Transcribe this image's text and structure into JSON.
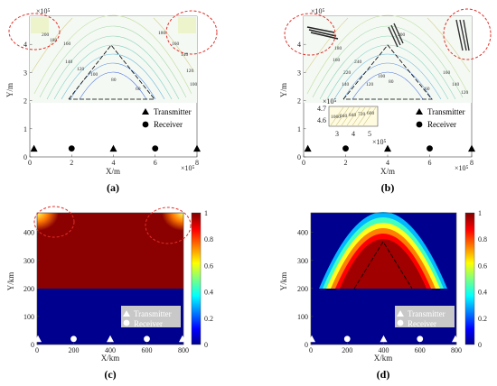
{
  "panels": [
    {
      "id": "a",
      "caption": "(a)",
      "type": "contour",
      "xlabel": "X/m",
      "ylabel": "Y/m",
      "x_exponent_label": "×10⁵",
      "y_exponent_label": "×10⁵",
      "xlim": [
        0,
        8
      ],
      "ylim": [
        0,
        5
      ],
      "xticks": [
        "0",
        "2",
        "4",
        "6",
        "8"
      ],
      "yticks": [
        "0",
        "1",
        "2",
        "3",
        "4"
      ],
      "contour_labels": [
        "200",
        "180",
        "160",
        "140",
        "120",
        "100",
        "80",
        "60",
        "180",
        "160",
        "140",
        "120",
        "100"
      ],
      "legend": [
        {
          "label": "Transmitter",
          "marker": "triangle"
        },
        {
          "label": "Receiver",
          "marker": "circle"
        }
      ]
    },
    {
      "id": "b",
      "caption": "(b)",
      "type": "contour",
      "xlabel": "X/m",
      "ylabel": "Y/m",
      "x_exponent_label": "×10⁵",
      "y_exponent_label": "×10⁵",
      "xlim": [
        0,
        8
      ],
      "ylim": [
        0,
        5
      ],
      "xticks": [
        "0",
        "2",
        "4",
        "6",
        "8"
      ],
      "yticks": [
        "0",
        "1",
        "2",
        "3",
        "4"
      ],
      "contour_labels": [
        "180",
        "160",
        "240",
        "220",
        "140",
        "120",
        "100",
        "80",
        "60",
        "160",
        "140",
        "120",
        "200"
      ],
      "inset": {
        "y_exponent_label": "×10⁵",
        "x_exponent_label": "×10⁵",
        "yticks": [
          "4.7",
          "4.6"
        ],
        "xticks": [
          "3",
          "4",
          "5"
        ],
        "contour_labels": [
          "1060",
          "940",
          "840",
          "720",
          "600"
        ]
      },
      "legend": [
        {
          "label": "Transmitter",
          "marker": "triangle"
        },
        {
          "label": "Receiver",
          "marker": "circle"
        }
      ]
    },
    {
      "id": "c",
      "caption": "(c)",
      "type": "heatmap",
      "xlabel": "X/km",
      "ylabel": "Y/km",
      "xlim": [
        0,
        800
      ],
      "ylim": [
        0,
        470
      ],
      "xticks": [
        "0",
        "200",
        "400",
        "600",
        "800"
      ],
      "yticks": [
        "0",
        "100",
        "200",
        "300",
        "400"
      ],
      "colorbar_ticks": [
        "0",
        "0.2",
        "0.4",
        "0.6",
        "0.8",
        "1"
      ],
      "legend": [
        {
          "label": "Transmitter",
          "marker": "triangle"
        },
        {
          "label": "Receiver",
          "marker": "circle"
        }
      ]
    },
    {
      "id": "d",
      "caption": "(d)",
      "type": "heatmap",
      "xlabel": "X/km",
      "ylabel": "Y/km",
      "xlim": [
        0,
        800
      ],
      "ylim": [
        0,
        470
      ],
      "xticks": [
        "0",
        "200",
        "400",
        "600",
        "800"
      ],
      "yticks": [
        "0",
        "100",
        "200",
        "300",
        "400"
      ],
      "colorbar_ticks": [
        "0",
        "0.2",
        "0.4",
        "0.6",
        "0.8",
        "1"
      ],
      "legend": [
        {
          "label": "Transmitter",
          "marker": "triangle"
        },
        {
          "label": "Receiver",
          "marker": "circle"
        }
      ]
    }
  ],
  "chart_data": [
    {
      "type": "scatter",
      "panel": "a",
      "series": [
        {
          "name": "Transmitter",
          "x": [
            0.2,
            4,
            8
          ],
          "y": [
            0.3,
            0.3,
            0.3
          ]
        },
        {
          "name": "Receiver",
          "x": [
            2,
            6
          ],
          "y": [
            0.3,
            0.3
          ]
        }
      ],
      "region_triangle": [
        [
          2.3,
          2.1
        ],
        [
          4,
          4.2
        ],
        [
          6.3,
          2.1
        ]
      ],
      "xlim": [
        0,
        8
      ],
      "ylim": [
        0,
        5
      ]
    },
    {
      "type": "scatter",
      "panel": "b",
      "series": [
        {
          "name": "Transmitter",
          "x": [
            0.2,
            4,
            8
          ],
          "y": [
            0.3,
            0.3,
            0.3
          ]
        },
        {
          "name": "Receiver",
          "x": [
            2,
            6
          ],
          "y": [
            0.3,
            0.3
          ]
        }
      ],
      "region_triangle": [
        [
          2.3,
          2.1
        ],
        [
          4,
          4.2
        ],
        [
          6.3,
          2.1
        ]
      ],
      "xlim": [
        0,
        8
      ],
      "ylim": [
        0,
        5
      ]
    },
    {
      "type": "heatmap",
      "panel": "c",
      "description_values": {
        "upper_region_value": 1,
        "lower_region_value": 0,
        "boundary_y": 200
      },
      "series": [
        {
          "name": "Transmitter",
          "x": [
            5,
            400,
            795
          ],
          "y": [
            20,
            20,
            20
          ]
        },
        {
          "name": "Receiver",
          "x": [
            200,
            600
          ],
          "y": [
            20,
            20
          ]
        }
      ],
      "xlim": [
        0,
        800
      ],
      "ylim": [
        0,
        470
      ],
      "clim": [
        0,
        1
      ]
    },
    {
      "type": "heatmap",
      "panel": "d",
      "series": [
        {
          "name": "Transmitter",
          "x": [
            5,
            400,
            795
          ],
          "y": [
            20,
            20,
            20
          ]
        },
        {
          "name": "Receiver",
          "x": [
            200,
            600
          ],
          "y": [
            20,
            20
          ]
        }
      ],
      "region_triangle": [
        [
          240,
          200
        ],
        [
          400,
          390
        ],
        [
          560,
          200
        ]
      ],
      "xlim": [
        0,
        800
      ],
      "ylim": [
        0,
        470
      ],
      "clim": [
        0,
        1
      ]
    }
  ],
  "colors": {
    "triangle_outline": "#000000",
    "annotation_circle": "#e0312a",
    "heat_high": "#8b0000",
    "heat_low": "#00008f",
    "legend_bg": "#c8c8c8"
  }
}
